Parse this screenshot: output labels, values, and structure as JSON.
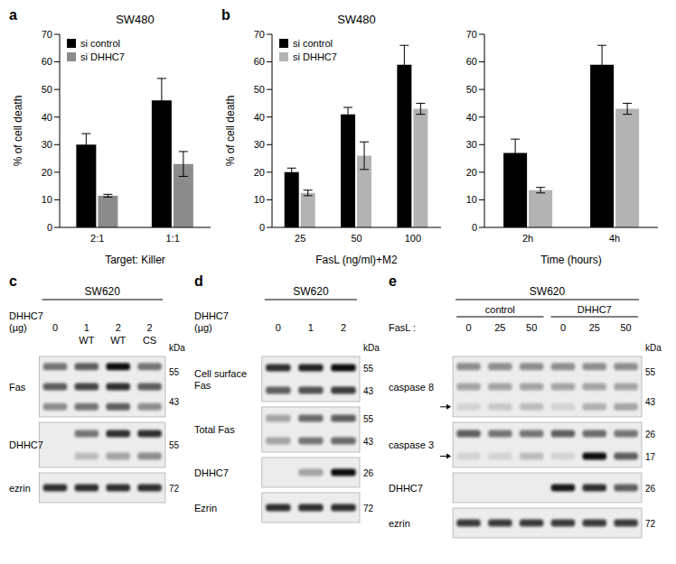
{
  "chart_data": [
    {
      "panel": "a",
      "type": "bar",
      "title": "SW480",
      "categories": [
        "2:1",
        "1:1"
      ],
      "x_label": "Target: Killer",
      "y_label": "% of cell death",
      "ylim": [
        0,
        70
      ],
      "yticks": [
        0,
        10,
        20,
        30,
        40,
        50,
        60,
        70
      ],
      "legend": "top-left",
      "series": [
        {
          "name": "si control",
          "color": "#000000",
          "values": [
            30,
            46
          ],
          "errors": [
            4,
            8
          ]
        },
        {
          "name": "si DHHC7",
          "color": "#8c8c8c",
          "values": [
            11.5,
            23
          ],
          "errors": [
            0.5,
            4.5
          ]
        }
      ]
    },
    {
      "panel": "b",
      "type": "bar",
      "title": "SW480",
      "categories": [
        "25",
        "50",
        "100"
      ],
      "x_label": "FasL (ng/ml)+M2",
      "y_label": "% of cell death",
      "ylim": [
        0,
        70
      ],
      "yticks": [
        0,
        10,
        20,
        30,
        40,
        50,
        60,
        70
      ],
      "legend": "top-left",
      "series": [
        {
          "name": "si control",
          "color": "#000000",
          "values": [
            20,
            41,
            59
          ],
          "errors": [
            1.5,
            2.5,
            7
          ]
        },
        {
          "name": "si DHHC7",
          "color": "#b3b3b3",
          "values": [
            12.5,
            26,
            43
          ],
          "errors": [
            1,
            5,
            2
          ]
        }
      ]
    },
    {
      "type": "bar",
      "categories": [
        "2h",
        "4h"
      ],
      "x_label": "Time (hours)",
      "ylim": [
        0,
        70
      ],
      "yticks": [
        0,
        10,
        20,
        30,
        40,
        50,
        60,
        70
      ],
      "series": [
        {
          "name": "si control",
          "color": "#000000",
          "values": [
            27,
            59
          ],
          "errors": [
            5,
            7
          ]
        },
        {
          "name": "si DHHC7",
          "color": "#b3b3b3",
          "values": [
            13.5,
            43
          ],
          "errors": [
            1,
            2
          ]
        }
      ]
    }
  ],
  "blots": [
    {
      "panel": "c",
      "cell_line": "SW620",
      "condition_label": [
        "DHHC7",
        "(µg)"
      ],
      "lanes": [
        "0",
        "1",
        "2",
        "2"
      ],
      "lane_sublabels": [
        null,
        "WT",
        "WT",
        "CS"
      ],
      "unit": "kDa",
      "rows": [
        {
          "label": "Fas",
          "bands": [
            [
              0.5,
              0.6,
              0.95,
              0.5
            ],
            [
              0.6,
              0.7,
              0.8,
              0.6
            ],
            [
              0.4,
              0.5,
              0.6,
              0.4
            ]
          ],
          "markers": [
            55,
            43
          ]
        },
        {
          "label": "DHHC7",
          "bands": [
            [
              0,
              0.5,
              0.8,
              0.8
            ],
            [
              0,
              0.2,
              0.3,
              0.4
            ]
          ],
          "markers": [
            55
          ]
        },
        {
          "label": "ezrin",
          "bands": [
            [
              0.8,
              0.8,
              0.8,
              0.8
            ]
          ],
          "markers": [
            72
          ]
        }
      ]
    },
    {
      "panel": "d",
      "cell_line": "SW620",
      "condition_label": [
        "DHHC7",
        "(µg)"
      ],
      "lanes": [
        "0",
        "1",
        "2"
      ],
      "unit": "kDa",
      "rows": [
        {
          "label": [
            "Cell surface",
            "Fas"
          ],
          "bands": [
            [
              0.8,
              0.85,
              0.95
            ],
            [
              0.6,
              0.65,
              0.75
            ]
          ],
          "markers": [
            55,
            43
          ]
        },
        {
          "label": "Total Fas",
          "bands": [
            [
              0.3,
              0.55,
              0.6
            ],
            [
              0.3,
              0.5,
              0.55
            ]
          ],
          "markers": [
            55,
            43
          ]
        },
        {
          "label": "DHHC7",
          "bands": [
            [
              0,
              0.3,
              0.95
            ]
          ],
          "markers": [
            26
          ]
        },
        {
          "label": "Ezrin",
          "bands": [
            [
              0.8,
              0.8,
              0.8
            ]
          ],
          "markers": [
            72
          ]
        }
      ]
    },
    {
      "panel": "e",
      "cell_line": "SW620",
      "condition_label": [
        "FasL :"
      ],
      "groups": [
        {
          "label": "control",
          "span": 3
        },
        {
          "label": "DHHC7",
          "span": 3
        }
      ],
      "lanes": [
        "0",
        "25",
        "50",
        "0",
        "25",
        "50"
      ],
      "unit": "kDa",
      "rows": [
        {
          "label": "caspase 8",
          "arrow": true,
          "bands": [
            [
              0.4,
              0.4,
              0.4,
              0.4,
              0.4,
              0.4
            ],
            [
              0.3,
              0.3,
              0.3,
              0.3,
              0.3,
              0.3
            ],
            [
              0.1,
              0.15,
              0.2,
              0.1,
              0.25,
              0.3
            ]
          ],
          "markers": [
            55,
            43
          ]
        },
        {
          "label": "caspase 3",
          "arrow": true,
          "bands": [
            [
              0.6,
              0.5,
              0.5,
              0.6,
              0.55,
              0.5
            ],
            [
              0.1,
              0.1,
              0.2,
              0.1,
              0.95,
              0.6
            ]
          ],
          "markers": [
            26,
            17
          ]
        },
        {
          "label": "DHHC7",
          "bands": [
            [
              0,
              0,
              0,
              0.9,
              0.8,
              0.6
            ]
          ],
          "markers": [
            26
          ]
        },
        {
          "label": "ezrin",
          "bands": [
            [
              0.75,
              0.75,
              0.75,
              0.75,
              0.75,
              0.75
            ]
          ],
          "markers": [
            72
          ]
        }
      ]
    }
  ]
}
